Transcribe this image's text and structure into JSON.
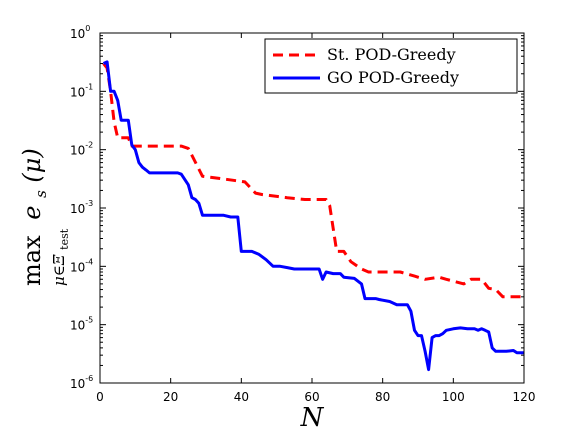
{
  "chart_data": {
    "type": "line",
    "xlabel": "N",
    "ylabel": {
      "main": "max",
      "func": "e",
      "func_sub": "s",
      "arg": "(μ)",
      "under": "μ∈Ξ",
      "under_sub": "test"
    },
    "xlim": [
      0,
      120
    ],
    "ylim": [
      1e-06,
      1
    ],
    "yscale": "log",
    "grid": false,
    "legend_position": "top-right",
    "x_ticks": [
      "0",
      "20",
      "40",
      "60",
      "80",
      "100",
      "120"
    ],
    "y_ticks": [
      {
        "base": "10",
        "exp": "0"
      },
      {
        "base": "10",
        "exp": "-1"
      },
      {
        "base": "10",
        "exp": "-2"
      },
      {
        "base": "10",
        "exp": "-3"
      },
      {
        "base": "10",
        "exp": "-4"
      },
      {
        "base": "10",
        "exp": "-5"
      },
      {
        "base": "10",
        "exp": "-6"
      }
    ],
    "series": [
      {
        "name": "St. POD-Greedy",
        "color": "#ff0000",
        "style": "dashed",
        "points": [
          [
            1,
            0.3
          ],
          [
            2,
            0.25
          ],
          [
            3,
            0.1
          ],
          [
            4,
            0.03
          ],
          [
            5,
            0.016
          ],
          [
            7,
            0.016
          ],
          [
            8,
            0.016
          ],
          [
            9,
            0.0115
          ],
          [
            23,
            0.0115
          ],
          [
            25,
            0.0105
          ],
          [
            26,
            0.008
          ],
          [
            29,
            0.0035
          ],
          [
            34,
            0.0032
          ],
          [
            41,
            0.0028
          ],
          [
            44,
            0.0018
          ],
          [
            46,
            0.0017
          ],
          [
            53,
            0.0015
          ],
          [
            58,
            0.0014
          ],
          [
            63,
            0.0014
          ],
          [
            64,
            0.0014
          ],
          [
            65,
            0.0011
          ],
          [
            67,
            0.00018
          ],
          [
            69,
            0.00018
          ],
          [
            71,
            0.00012
          ],
          [
            74,
            9e-05
          ],
          [
            76,
            8e-05
          ],
          [
            85,
            8e-05
          ],
          [
            89,
            6.8e-05
          ],
          [
            92,
            6e-05
          ],
          [
            96,
            6.5e-05
          ],
          [
            98,
            6e-05
          ],
          [
            103,
            5e-05
          ],
          [
            105,
            6e-05
          ],
          [
            108,
            6e-05
          ],
          [
            110,
            4.2e-05
          ],
          [
            112,
            4e-05
          ],
          [
            114,
            3e-05
          ],
          [
            119,
            3e-05
          ],
          [
            120,
            3e-05
          ]
        ]
      },
      {
        "name": "GO POD-Greedy",
        "color": "#0000ff",
        "style": "solid",
        "points": [
          [
            1,
            0.3
          ],
          [
            2,
            0.32
          ],
          [
            3,
            0.1
          ],
          [
            4,
            0.1
          ],
          [
            5,
            0.07
          ],
          [
            6,
            0.032
          ],
          [
            8,
            0.032
          ],
          [
            9,
            0.012
          ],
          [
            10,
            0.01
          ],
          [
            11,
            0.006
          ],
          [
            12,
            0.005
          ],
          [
            13,
            0.0045
          ],
          [
            14,
            0.004
          ],
          [
            22,
            0.004
          ],
          [
            23,
            0.0038
          ],
          [
            25,
            0.0025
          ],
          [
            26,
            0.0015
          ],
          [
            27,
            0.0014
          ],
          [
            28,
            0.0012
          ],
          [
            29,
            0.00075
          ],
          [
            35,
            0.00075
          ],
          [
            37,
            0.0007
          ],
          [
            39,
            0.0007
          ],
          [
            40,
            0.00018
          ],
          [
            43,
            0.00018
          ],
          [
            45,
            0.00016
          ],
          [
            47,
            0.00013
          ],
          [
            49,
            0.0001
          ],
          [
            51,
            0.0001
          ],
          [
            53,
            9.5e-05
          ],
          [
            55,
            9e-05
          ],
          [
            62,
            9e-05
          ],
          [
            63,
            6e-05
          ],
          [
            64,
            8e-05
          ],
          [
            66,
            7.5e-05
          ],
          [
            68,
            7.5e-05
          ],
          [
            69,
            6.5e-05
          ],
          [
            72,
            6.2e-05
          ],
          [
            74,
            5e-05
          ],
          [
            75,
            2.8e-05
          ],
          [
            78,
            2.8e-05
          ],
          [
            79,
            2.7e-05
          ],
          [
            82,
            2.5e-05
          ],
          [
            84,
            2.2e-05
          ],
          [
            87,
            2.2e-05
          ],
          [
            88,
            1.7e-05
          ],
          [
            89,
            8e-06
          ],
          [
            90,
            6.5e-06
          ],
          [
            91,
            6.5e-06
          ],
          [
            92,
            3.5e-06
          ],
          [
            93,
            1.7e-06
          ],
          [
            94,
            6e-06
          ],
          [
            95,
            6.5e-06
          ],
          [
            96,
            6.5e-06
          ],
          [
            97,
            7e-06
          ],
          [
            98,
            8e-06
          ],
          [
            100,
            8.5e-06
          ],
          [
            102,
            8.8e-06
          ],
          [
            104,
            8.5e-06
          ],
          [
            105,
            8.5e-06
          ],
          [
            106,
            8.5e-06
          ],
          [
            107,
            8e-06
          ],
          [
            108,
            8.5e-06
          ],
          [
            109,
            8e-06
          ],
          [
            110,
            7.5e-06
          ],
          [
            111,
            4e-06
          ],
          [
            112,
            3.5e-06
          ],
          [
            115,
            3.5e-06
          ],
          [
            117,
            3.6e-06
          ],
          [
            118,
            3.3e-06
          ],
          [
            120,
            3.3e-06
          ]
        ]
      }
    ]
  }
}
